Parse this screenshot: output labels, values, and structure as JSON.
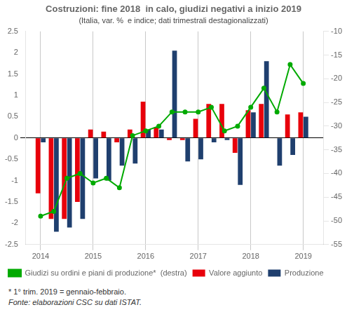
{
  "chart_data": {
    "type": "bar",
    "title": "Costruzioni: fine 2018  in calo, giudizi negativi a inizio 2019",
    "subtitle": "(Italia, var. %  e indice; dati trimestrali destagionalizzati)",
    "annotations": [
      "* 1° trim. 2019 = gennaio-febbraio.",
      "Fonte: elaborazioni  CSC su dati ISTAT."
    ],
    "x": [
      2014.0,
      2014.25,
      2014.5,
      2014.75,
      2015.0,
      2015.25,
      2015.5,
      2015.75,
      2016.0,
      2016.25,
      2016.5,
      2016.75,
      2017.0,
      2017.25,
      2017.5,
      2017.75,
      2018.0,
      2018.25,
      2018.5,
      2018.75,
      2019.0
    ],
    "series": [
      {
        "name": "Valore aggiunto",
        "type": "bar",
        "color": "#e8000b",
        "values": [
          -1.3,
          -1.9,
          -1.9,
          -1.5,
          0.2,
          0.15,
          -0.1,
          0.2,
          0.85,
          0.25,
          -0.05,
          -0.05,
          0.45,
          0.8,
          0.8,
          -0.35,
          0.65,
          0.8,
          0.0,
          0.55,
          0.6
        ]
      },
      {
        "name": "Produzione",
        "type": "bar",
        "color": "#1f3f6e",
        "values": [
          -0.1,
          -2.2,
          -2.1,
          -1.9,
          -0.95,
          -1.0,
          -0.65,
          -0.6,
          0.2,
          0.2,
          2.05,
          -0.55,
          -0.5,
          -0.1,
          -0.05,
          -1.1,
          0.6,
          1.8,
          -0.65,
          -0.4,
          0.5
        ]
      },
      {
        "name": "Giudizi su ordini e piani di produzione*  (destra)",
        "type": "line",
        "axis": "y2",
        "color": "#00aa00",
        "marker": "o",
        "values": [
          -49,
          -48,
          -41,
          -40,
          -42,
          -41,
          -43,
          -32,
          -31,
          -30,
          -27,
          -27,
          -27,
          -26,
          -31,
          -30,
          -26,
          -22,
          -27,
          -17,
          -21
        ]
      }
    ],
    "xlim": [
      2013.72,
      2019.38
    ],
    "xticks": [
      2014,
      2015,
      2016,
      2017,
      2018,
      2019
    ],
    "ylim": [
      -2.5,
      2.5
    ],
    "yticks": [
      -2.5,
      -2,
      -1.5,
      -1,
      -0.5,
      0,
      0.5,
      1,
      1.5,
      2,
      2.5
    ],
    "y2lim": [
      -55,
      -10
    ],
    "y2ticks": [
      -55,
      -50,
      -45,
      -40,
      -35,
      -30,
      -25,
      -20,
      -15,
      -10
    ],
    "grid": "x",
    "legend": "lower left"
  }
}
